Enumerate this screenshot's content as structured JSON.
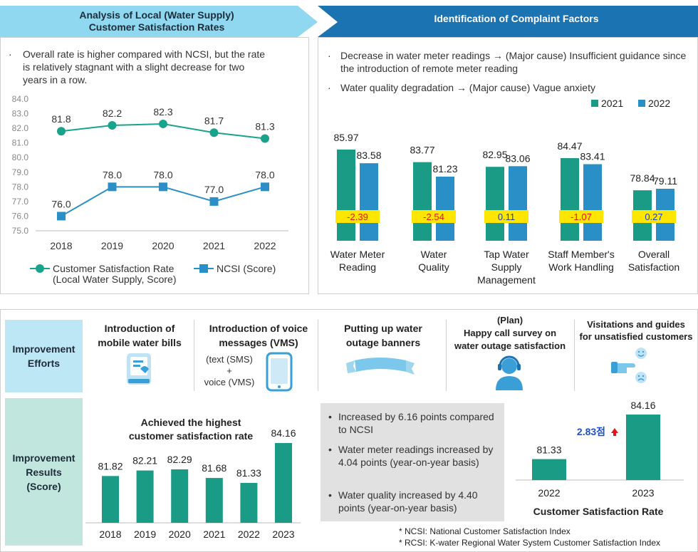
{
  "left_banner": {
    "title": "Analysis of Local (Water Supply)\nCustomer Satisfaction Rates"
  },
  "right_banner": {
    "title": "Identification of Complaint Factors"
  },
  "left_panel": {
    "bullet": "Overall rate is higher compared with NCSI, but the rate is relatively stagnant with a slight decrease for two years in a row."
  },
  "right_panel": {
    "bullets": [
      "Decrease in water meter readings → (Major cause) Insufficient guidance since the introduction of remote meter reading",
      "Water quality degradation → (Major cause) Vague anxiety"
    ]
  },
  "chart_data": [
    {
      "id": "satisfaction-line",
      "type": "line",
      "x": [
        "2018",
        "2019",
        "2020",
        "2021",
        "2022"
      ],
      "ylim": [
        75.0,
        84.0
      ],
      "yticks": [
        "84.0",
        "83.0",
        "82.0",
        "81.0",
        "80.0",
        "79.0",
        "78.0",
        "77.0",
        "76.0",
        "75.0"
      ],
      "series": [
        {
          "name": "Customer Satisfaction Rate\n(Local Water Supply, Score)",
          "values": [
            81.8,
            82.2,
            82.3,
            81.7,
            81.3
          ],
          "labels": [
            "81.8",
            "82.2",
            "82.3",
            "81.7",
            "81.3"
          ],
          "color": "#1aa38c",
          "marker": "circle"
        },
        {
          "name": "NCSI (Score)",
          "values": [
            76.0,
            78.0,
            78.0,
            77.0,
            78.0
          ],
          "labels": [
            "76.0",
            "78.0",
            "78.0",
            "77.0",
            "78.0"
          ],
          "color": "#2a8fc6",
          "marker": "square"
        }
      ]
    },
    {
      "id": "complaint-bars",
      "type": "bar",
      "categories": [
        "Water Meter\nReading",
        "Water\nQuality",
        "Tap Water\nSupply\nManagement",
        "Staff Member's\nWork Handling",
        "Overall\nSatisfaction"
      ],
      "ylim": [
        70,
        88
      ],
      "series": [
        {
          "name": "2021",
          "values": [
            85.97,
            83.77,
            82.95,
            84.47,
            78.84
          ],
          "labels": [
            "85.97",
            "83.77",
            "82.95",
            "84.47",
            "78.84"
          ],
          "color": "#1a9b86"
        },
        {
          "name": "2022",
          "values": [
            83.58,
            81.23,
            83.06,
            83.41,
            79.11
          ],
          "labels": [
            "83.58",
            "81.23",
            "83.06",
            "83.41",
            "79.11"
          ],
          "color": "#2a8fc6"
        }
      ],
      "differences": [
        -2.39,
        -2.54,
        0.11,
        -1.07,
        0.27
      ],
      "difference_labels": [
        "-2.39",
        "-2.54",
        "0.11",
        "-1.07",
        "0.27"
      ]
    },
    {
      "id": "results-bars",
      "type": "bar",
      "title": "Achieved the highest\ncustomer satisfaction rate",
      "categories": [
        "2018",
        "2019",
        "2020",
        "2021",
        "2022",
        "2023"
      ],
      "values": [
        81.82,
        82.21,
        82.29,
        81.68,
        81.33,
        84.16
      ],
      "labels": [
        "81.82",
        "82.21",
        "82.29",
        "81.68",
        "81.33",
        "84.16"
      ],
      "ylim": [
        78.5,
        84.5
      ],
      "color": "#1a9b86"
    },
    {
      "id": "csr-bars",
      "type": "bar",
      "title": "Customer Satisfaction Rate",
      "categories": [
        "2022",
        "2023"
      ],
      "values": [
        81.33,
        84.16
      ],
      "labels": [
        "81.33",
        "84.16"
      ],
      "ylim": [
        78,
        84.5
      ],
      "color": "#1a9b86",
      "annotation": "2.83점"
    }
  ],
  "efforts": {
    "label": "Improvement\nEfforts",
    "items": [
      {
        "title": "Introduction of\nmobile water bills",
        "icon": "mobile-bill-icon"
      },
      {
        "title": "Introduction of voice\nmessages (VMS)",
        "sub": "(text (SMS)\n+\nvoice (VMS)",
        "icon": "smartphone-icon"
      },
      {
        "title": "Putting up water\noutage banners",
        "icon": "banner-icon"
      },
      {
        "title": "(Plan)\nHappy call survey on\nwater outage satisfaction",
        "icon": "headset-agent-icon"
      },
      {
        "title": "Visitations and guides\nfor unsatisfied customers",
        "icon": "pointing-hand-faces-icon"
      }
    ]
  },
  "results": {
    "label": "Improvement\nResults\n(Score)",
    "bullets": [
      "Increased by 6.16 points compared to NCSI",
      "Water meter readings increased by 4.04 points (year-on-year basis)",
      "Water quality increased by 4.40 points (year-on-year basis)"
    ]
  },
  "footnotes": [
    "* NCSI: National Customer Satisfaction Index",
    "* RCSI: K-water Regional Water System Customer Satisfaction Index"
  ],
  "colors": {
    "teal": "#1a9b86",
    "blue": "#2a8fc6",
    "banner_light": "#8fd8ef",
    "banner_dark": "#1b73b2",
    "label_blue": "#bde7f5",
    "label_green": "#c1e6dd",
    "highlight": "#ffe600",
    "neg": "#e8141c",
    "pos": "#1b3fbf"
  }
}
